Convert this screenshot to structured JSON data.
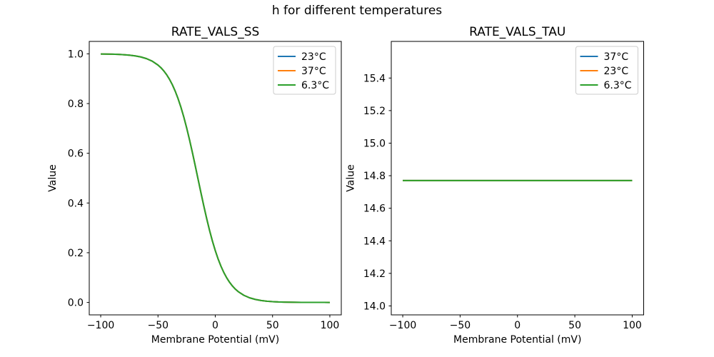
{
  "figure": {
    "title": "h for different temperatures",
    "background_color": "#ffffff",
    "text_color": "#000000"
  },
  "chart_data": [
    {
      "type": "line",
      "title": "RATE_VALS_SS",
      "xlabel": "Membrane Potential (mV)",
      "ylabel": "Value",
      "xlim": [
        -110,
        110
      ],
      "ylim": [
        -0.05,
        1.05
      ],
      "xticks": [
        -100,
        -50,
        0,
        50,
        100
      ],
      "yticks": [
        0.0,
        0.2,
        0.4,
        0.6,
        0.8,
        1.0
      ],
      "xtick_decimals": 0,
      "ytick_decimals": 1,
      "grid": false,
      "legend_position": "upper right",
      "note": "Sigmoidal steady-state curve; all three temperature series are identical and overlap, so only the last-plotted green 6.3°C line is visible.",
      "x": [
        -100,
        -95,
        -90,
        -85,
        -80,
        -75,
        -70,
        -65,
        -60,
        -55,
        -50,
        -47.5,
        -45,
        -42.5,
        -40,
        -37.5,
        -35,
        -32.5,
        -30,
        -27.5,
        -25,
        -22.5,
        -20,
        -17.5,
        -15,
        -12.5,
        -10,
        -7.5,
        -5,
        -2.5,
        0,
        2.5,
        5,
        7.5,
        10,
        12.5,
        15,
        17.5,
        20,
        25,
        30,
        35,
        40,
        45,
        50,
        55,
        60,
        65,
        70,
        75,
        80,
        85,
        90,
        95,
        100
      ],
      "values": [
        0.9994,
        0.9991,
        0.9986,
        0.9978,
        0.9966,
        0.9948,
        0.9919,
        0.9875,
        0.9807,
        0.9704,
        0.9549,
        0.9445,
        0.9317,
        0.9164,
        0.898,
        0.8761,
        0.8502,
        0.8202,
        0.7855,
        0.7463,
        0.7026,
        0.6548,
        0.6037,
        0.5503,
        0.4956,
        0.4411,
        0.388,
        0.3373,
        0.2901,
        0.2471,
        0.2086,
        0.1747,
        0.1453,
        0.1202,
        0.0988,
        0.0809,
        0.0661,
        0.0537,
        0.0436,
        0.0286,
        0.0186,
        0.0121,
        0.0078,
        0.0051,
        0.0033,
        0.0021,
        0.0014,
        0.0009,
        0.0006,
        0.0004,
        0.0002,
        0.0002,
        0.0001,
        0.0001,
        0.0
      ],
      "values_identical_for_all_series": true,
      "series": [
        {
          "name": "23°C",
          "color": "#1f77b4"
        },
        {
          "name": "37°C",
          "color": "#ff7f0e"
        },
        {
          "name": "6.3°C",
          "color": "#2ca02c"
        }
      ]
    },
    {
      "type": "line",
      "title": "RATE_VALS_TAU",
      "xlabel": "Membrane Potential (mV)",
      "ylabel": "Value",
      "xlim": [
        -110,
        110
      ],
      "ylim": [
        13.945,
        15.625
      ],
      "xticks": [
        -100,
        -50,
        0,
        50,
        100
      ],
      "yticks": [
        14.0,
        14.2,
        14.4,
        14.6,
        14.8,
        15.0,
        15.2,
        15.4
      ],
      "xtick_decimals": 0,
      "ytick_decimals": 1,
      "grid": false,
      "legend_position": "upper right",
      "note": "Constant tau value of about 14.77 across the whole voltage range; all three temperature series overlap, so only the green 6.3°C line is visible.",
      "x": [
        -100,
        100
      ],
      "values": [
        14.77,
        14.77
      ],
      "values_identical_for_all_series": true,
      "series": [
        {
          "name": "37°C",
          "color": "#1f77b4"
        },
        {
          "name": "23°C",
          "color": "#ff7f0e"
        },
        {
          "name": "6.3°C",
          "color": "#2ca02c"
        }
      ]
    }
  ]
}
